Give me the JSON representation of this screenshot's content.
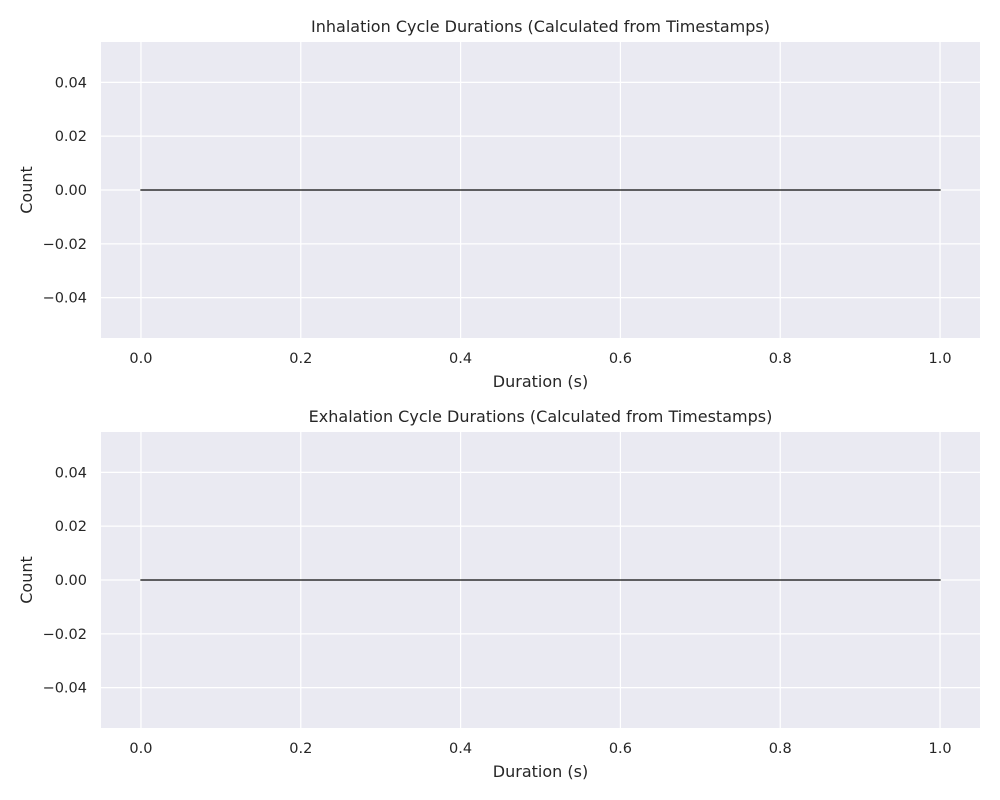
{
  "chart_data": [
    {
      "type": "bar",
      "title": "Inhalation Cycle Durations (Calculated from Timestamps)",
      "xlabel": "Duration (s)",
      "ylabel": "Count",
      "x_range": [
        0,
        1
      ],
      "values": [
        0
      ],
      "xlim": [
        -0.05,
        1.05
      ],
      "ylim": [
        -0.055,
        0.055
      ],
      "xticks": [
        "0.0",
        "0.2",
        "0.4",
        "0.6",
        "0.8",
        "1.0"
      ],
      "yticks": [
        "0.04",
        "0.02",
        "0.00",
        "−0.02",
        "−0.04"
      ],
      "grid": true
    },
    {
      "type": "bar",
      "title": "Exhalation Cycle Durations (Calculated from Timestamps)",
      "xlabel": "Duration (s)",
      "ylabel": "Count",
      "x_range": [
        0,
        1
      ],
      "values": [
        0
      ],
      "xlim": [
        -0.05,
        1.05
      ],
      "ylim": [
        -0.055,
        0.055
      ],
      "xticks": [
        "0.0",
        "0.2",
        "0.4",
        "0.6",
        "0.8",
        "1.0"
      ],
      "yticks": [
        "0.04",
        "0.02",
        "0.00",
        "−0.02",
        "−0.04"
      ],
      "grid": true
    }
  ]
}
